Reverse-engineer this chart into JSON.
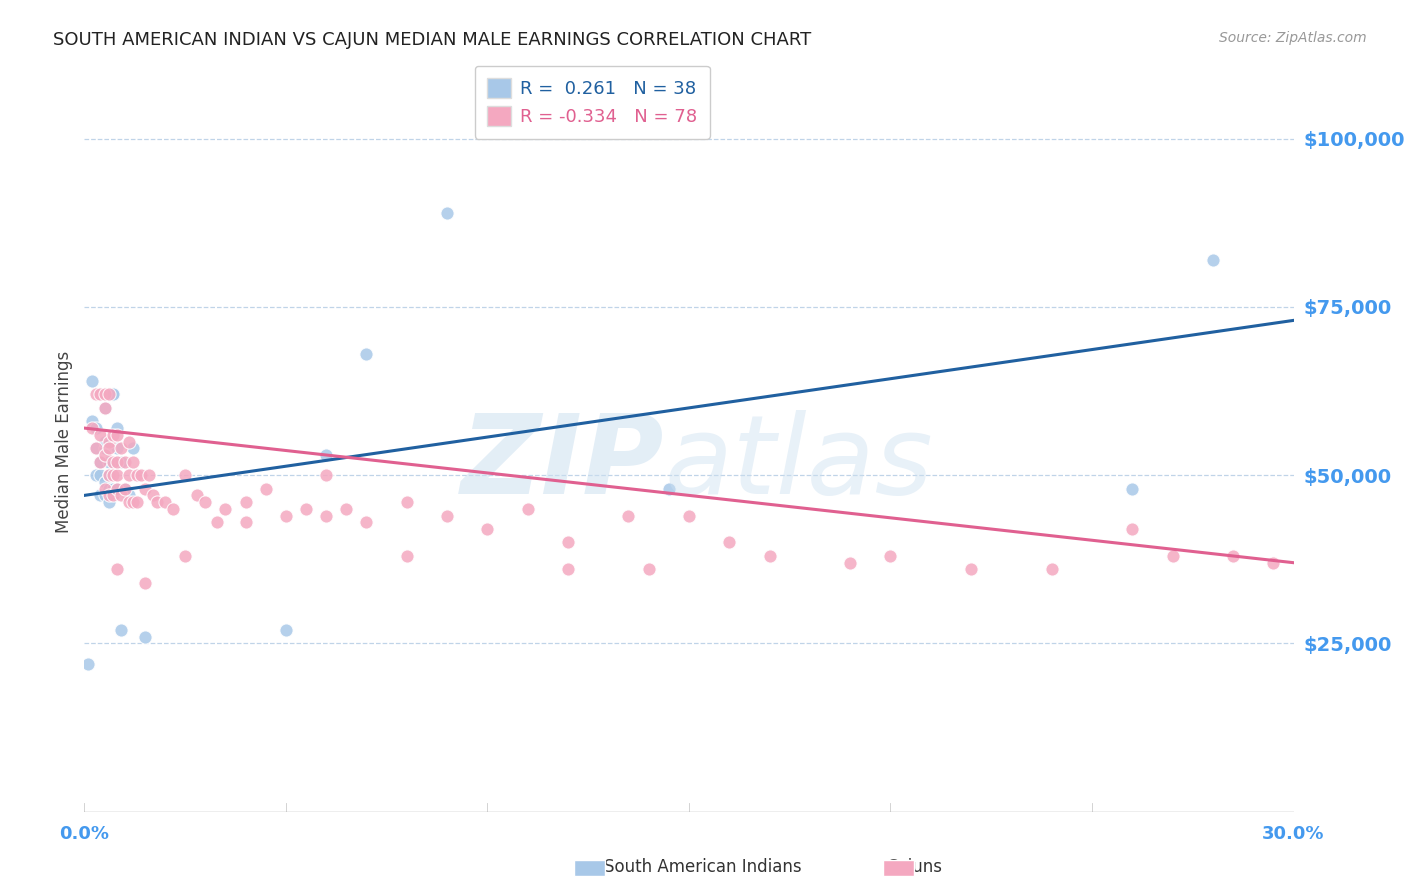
{
  "title": "SOUTH AMERICAN INDIAN VS CAJUN MEDIAN MALE EARNINGS CORRELATION CHART",
  "source": "Source: ZipAtlas.com",
  "ylabel": "Median Male Earnings",
  "yticks": [
    0,
    25000,
    50000,
    75000,
    100000
  ],
  "ytick_labels": [
    "",
    "$25,000",
    "$50,000",
    "$75,000",
    "$100,000"
  ],
  "blue_color": "#a8c8e8",
  "pink_color": "#f4a8c0",
  "blue_line_color": "#2060a0",
  "pink_line_color": "#e06090",
  "title_color": "#222222",
  "ylabel_color": "#444444",
  "tick_label_color": "#4499ee",
  "grid_color": "#c0d4e8",
  "background_color": "#ffffff",
  "blue_scatter_x": [
    0.001,
    0.002,
    0.002,
    0.003,
    0.003,
    0.003,
    0.004,
    0.004,
    0.004,
    0.004,
    0.005,
    0.005,
    0.005,
    0.005,
    0.005,
    0.006,
    0.006,
    0.006,
    0.006,
    0.007,
    0.007,
    0.007,
    0.008,
    0.008,
    0.008,
    0.009,
    0.009,
    0.01,
    0.011,
    0.012,
    0.015,
    0.05,
    0.06,
    0.07,
    0.26,
    0.28,
    0.145,
    0.09
  ],
  "blue_scatter_y": [
    22000,
    58000,
    64000,
    54000,
    57000,
    50000,
    52000,
    47000,
    50000,
    52000,
    54000,
    49000,
    55000,
    60000,
    47000,
    52000,
    48000,
    46000,
    50000,
    62000,
    62000,
    48000,
    54000,
    57000,
    48000,
    27000,
    52000,
    48000,
    47000,
    54000,
    26000,
    27000,
    53000,
    68000,
    48000,
    82000,
    48000,
    89000
  ],
  "pink_scatter_x": [
    0.002,
    0.003,
    0.003,
    0.004,
    0.004,
    0.004,
    0.005,
    0.005,
    0.005,
    0.005,
    0.006,
    0.006,
    0.006,
    0.006,
    0.006,
    0.007,
    0.007,
    0.007,
    0.007,
    0.008,
    0.008,
    0.008,
    0.008,
    0.009,
    0.009,
    0.01,
    0.01,
    0.011,
    0.011,
    0.011,
    0.012,
    0.012,
    0.013,
    0.013,
    0.014,
    0.015,
    0.016,
    0.017,
    0.018,
    0.02,
    0.022,
    0.025,
    0.028,
    0.03,
    0.033,
    0.035,
    0.04,
    0.045,
    0.05,
    0.055,
    0.06,
    0.065,
    0.07,
    0.08,
    0.09,
    0.1,
    0.11,
    0.12,
    0.135,
    0.15,
    0.16,
    0.17,
    0.19,
    0.2,
    0.22,
    0.24,
    0.26,
    0.27,
    0.285,
    0.295,
    0.12,
    0.14,
    0.08,
    0.06,
    0.04,
    0.025,
    0.015,
    0.008
  ],
  "pink_scatter_y": [
    57000,
    54000,
    62000,
    52000,
    56000,
    62000,
    48000,
    53000,
    60000,
    62000,
    47000,
    55000,
    50000,
    62000,
    54000,
    47000,
    52000,
    56000,
    50000,
    50000,
    56000,
    48000,
    52000,
    47000,
    54000,
    52000,
    48000,
    50000,
    46000,
    55000,
    46000,
    52000,
    50000,
    46000,
    50000,
    48000,
    50000,
    47000,
    46000,
    46000,
    45000,
    50000,
    47000,
    46000,
    43000,
    45000,
    46000,
    48000,
    44000,
    45000,
    44000,
    45000,
    43000,
    46000,
    44000,
    42000,
    45000,
    40000,
    44000,
    44000,
    40000,
    38000,
    37000,
    38000,
    36000,
    36000,
    42000,
    38000,
    38000,
    37000,
    36000,
    36000,
    38000,
    50000,
    43000,
    38000,
    34000,
    36000
  ],
  "blue_trend_x": [
    0.0,
    0.3
  ],
  "blue_trend_y": [
    47000,
    73000
  ],
  "pink_trend_x": [
    0.0,
    0.3
  ],
  "pink_trend_y": [
    57000,
    37000
  ],
  "xlim": [
    0.0,
    0.3
  ],
  "ylim": [
    0,
    110000
  ],
  "xtick_vals": [
    0.0,
    0.05,
    0.1,
    0.15,
    0.2,
    0.25,
    0.3
  ],
  "figsize": [
    14.06,
    8.92
  ],
  "dpi": 100
}
